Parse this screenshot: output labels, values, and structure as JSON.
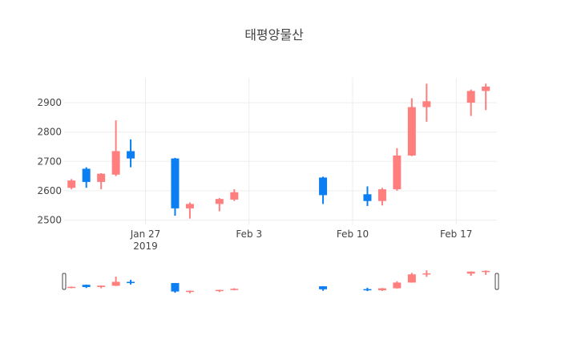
{
  "chart_data": {
    "type": "candlestick",
    "title": "태평양물산",
    "xlabel": "",
    "ylabel": "",
    "ylim": [
      2485,
      2985
    ],
    "y_ticks": [
      2500,
      2600,
      2700,
      2800,
      2900
    ],
    "y_tick_labels": [
      "2500",
      "2600",
      "2700",
      "2800",
      "2900"
    ],
    "x_ticks": [
      {
        "date": "2019-01-27",
        "label": "Jan 27",
        "sublabel": "2019"
      },
      {
        "date": "2019-02-03",
        "label": "Feb 3",
        "sublabel": ""
      },
      {
        "date": "2019-02-10",
        "label": "Feb 10",
        "sublabel": ""
      },
      {
        "date": "2019-02-17",
        "label": "Feb 17",
        "sublabel": ""
      }
    ],
    "xlim": [
      "2019-01-21T12:00",
      "2019-02-19T18:00"
    ],
    "grid": true,
    "legend": "none",
    "increasing_color": "#FF7F7F",
    "decreasing_color": "#0B7FF1",
    "range_slider": true,
    "candles": [
      {
        "date": "2019-01-22",
        "open": 2610,
        "high": 2640,
        "low": 2605,
        "close": 2635
      },
      {
        "date": "2019-01-23",
        "open": 2675,
        "high": 2680,
        "low": 2610,
        "close": 2630
      },
      {
        "date": "2019-01-24",
        "open": 2630,
        "high": 2660,
        "low": 2605,
        "close": 2658
      },
      {
        "date": "2019-01-25",
        "open": 2655,
        "high": 2840,
        "low": 2650,
        "close": 2735
      },
      {
        "date": "2019-01-26",
        "open": 2735,
        "high": 2775,
        "low": 2680,
        "close": 2710
      },
      {
        "date": "2019-01-29",
        "open": 2710,
        "high": 2712,
        "low": 2515,
        "close": 2540
      },
      {
        "date": "2019-01-30",
        "open": 2540,
        "high": 2560,
        "low": 2505,
        "close": 2555
      },
      {
        "date": "2019-02-01",
        "open": 2555,
        "high": 2575,
        "low": 2530,
        "close": 2572
      },
      {
        "date": "2019-02-02",
        "open": 2570,
        "high": 2605,
        "low": 2565,
        "close": 2595
      },
      {
        "date": "2019-02-08",
        "open": 2645,
        "high": 2648,
        "low": 2555,
        "close": 2585
      },
      {
        "date": "2019-02-11",
        "open": 2588,
        "high": 2615,
        "low": 2548,
        "close": 2565
      },
      {
        "date": "2019-02-12",
        "open": 2565,
        "high": 2610,
        "low": 2550,
        "close": 2605
      },
      {
        "date": "2019-02-13",
        "open": 2605,
        "high": 2745,
        "low": 2600,
        "close": 2720
      },
      {
        "date": "2019-02-14",
        "open": 2720,
        "high": 2915,
        "low": 2718,
        "close": 2885
      },
      {
        "date": "2019-02-15",
        "open": 2885,
        "high": 2965,
        "low": 2835,
        "close": 2905
      },
      {
        "date": "2019-02-18",
        "open": 2900,
        "high": 2945,
        "low": 2855,
        "close": 2940
      },
      {
        "date": "2019-02-19",
        "open": 2940,
        "high": 2965,
        "low": 2875,
        "close": 2955
      }
    ]
  }
}
